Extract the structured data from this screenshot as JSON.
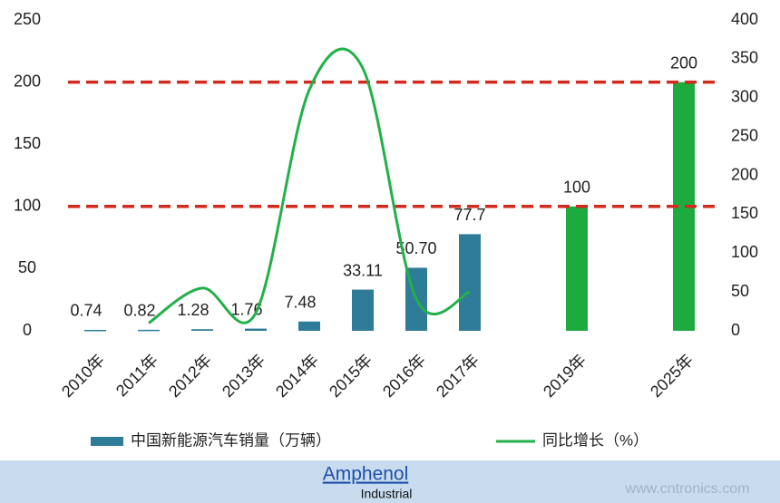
{
  "chart_data": {
    "type": "bar",
    "categories": [
      "2010年",
      "2011年",
      "2012年",
      "2013年",
      "2014年",
      "2015年",
      "2016年",
      "2017年",
      null,
      "2019年",
      null,
      "2025年"
    ],
    "series": [
      {
        "name": "中国新能源汽车销量（万辆）",
        "color": "#2f7c98",
        "colors": [
          "#2f7c98",
          "#2f7c98",
          "#2f7c98",
          "#2f7c98",
          "#2f7c98",
          "#2f7c98",
          "#2f7c98",
          "#2f7c98",
          null,
          "#1dab3f",
          null,
          "#1dab3f"
        ],
        "values": [
          0.74,
          0.82,
          1.28,
          1.76,
          7.48,
          33.11,
          50.7,
          77.7,
          null,
          100,
          null,
          200
        ],
        "value_labels": [
          "0.74",
          "0.82",
          "1.28",
          "1.76",
          "7.48",
          "33.11",
          "50.70",
          "77.7",
          null,
          "100",
          null,
          "200"
        ]
      },
      {
        "name": "同比增长（%）",
        "type": "line",
        "color": "#22b04a",
        "axis": "y2",
        "values": [
          null,
          10,
          55,
          23,
          310,
          338,
          41,
          50,
          null,
          null,
          null,
          null
        ]
      }
    ],
    "ylim": [
      0,
      250
    ],
    "yticks": [
      0,
      50,
      100,
      150,
      200,
      250
    ],
    "y2lim": [
      0,
      400
    ],
    "y2ticks": [
      0,
      50,
      100,
      150,
      200,
      250,
      300,
      350,
      400
    ],
    "reference_lines": [
      100,
      200
    ],
    "reference_color": "#d42a1e",
    "grid": false
  },
  "footer": {
    "brand": "Amphenol",
    "division": "Industrial",
    "watermark": "www.cntronics.com"
  }
}
